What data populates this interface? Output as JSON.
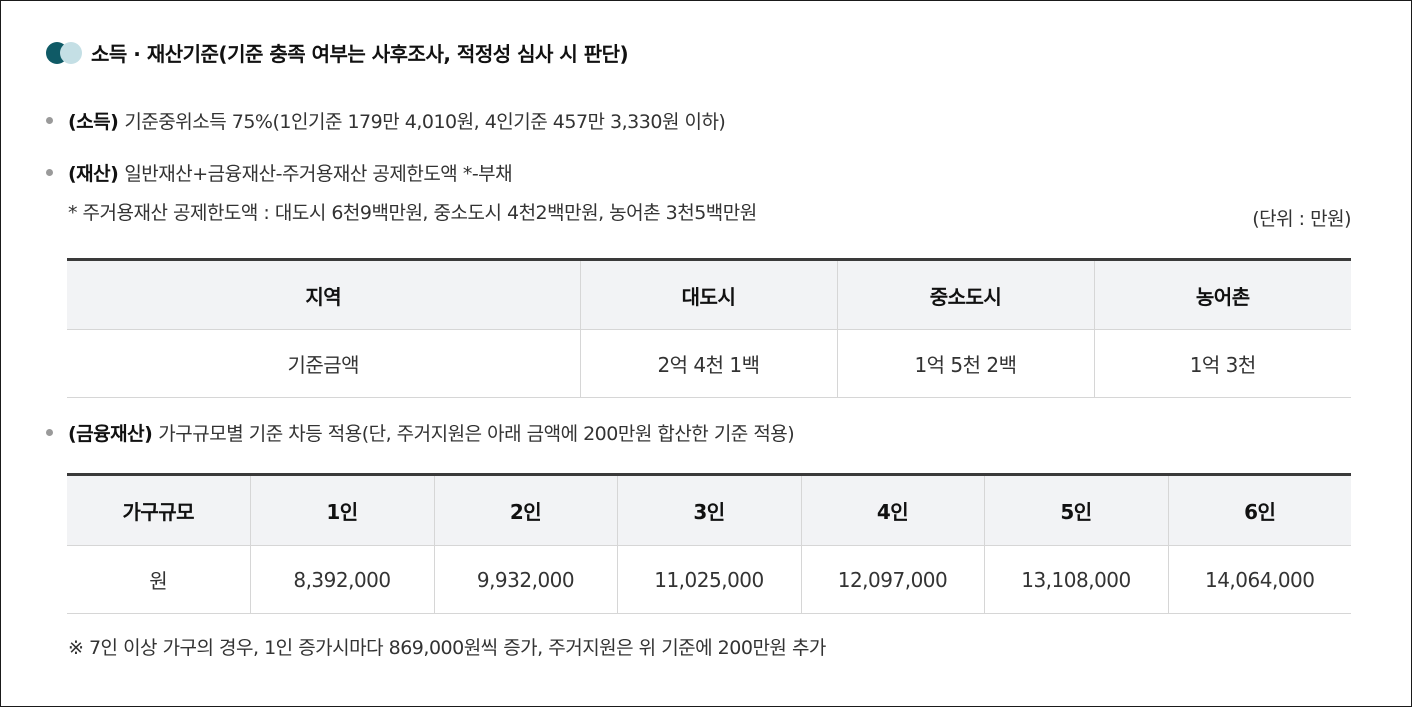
{
  "section": {
    "title": "소득 · 재산기준(기준 충족 여부는 사후조사, 적정성 심사 시 판단)",
    "colors": {
      "dot_dark": "#0f5a66",
      "dot_light": "#c4dfe5"
    }
  },
  "income": {
    "lead": "(소득)",
    "text": "기준중위소득 75%(1인기준 179만 4,010원, 4인기준 457만 3,330원 이하)"
  },
  "assets": {
    "lead": "(재산)",
    "text": "일반재산+금융재산-주거용재산 공제한도액 *-부채",
    "note": "* 주거용재산 공제한도액 : 대도시 6천9백만원, 중소도시 4천2백만원, 농어촌 3천5백만원",
    "unit": "(단위 : 만원)"
  },
  "region_table": {
    "headers": [
      "지역",
      "대도시",
      "중소도시",
      "농어촌"
    ],
    "row": [
      "기준금액",
      "2억 4천 1백",
      "1억 5천 2백",
      "1억 3천"
    ]
  },
  "finance": {
    "lead": "(금융재산)",
    "text": "가구규모별 기준 차등 적용(단, 주거지원은 아래 금액에 200만원 합산한 기준 적용)"
  },
  "finance_table": {
    "headers": [
      "가구규모",
      "1인",
      "2인",
      "3인",
      "4인",
      "5인",
      "6인"
    ],
    "row": [
      "원",
      "8,392,000",
      "9,932,000",
      "11,025,000",
      "12,097,000",
      "13,108,000",
      "14,064,000"
    ]
  },
  "footnote": "※ 7인 이상 가구의 경우, 1인 증가시마다 869,000원씩 증가, 주거지원은 위 기준에 200만원 추가"
}
